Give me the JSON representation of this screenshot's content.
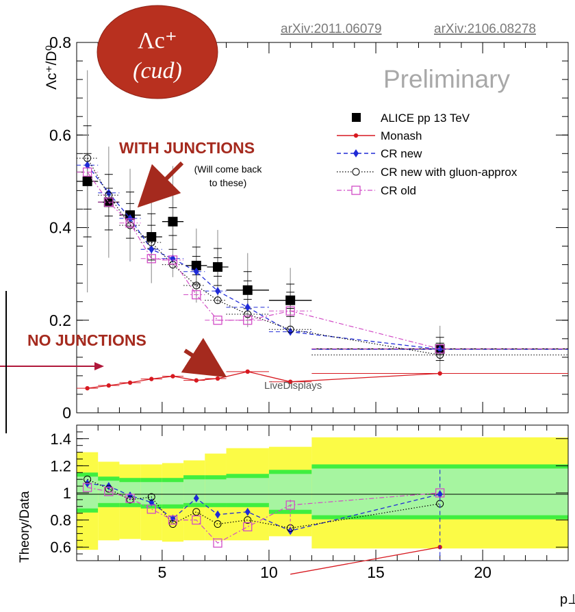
{
  "references": [
    "arXiv:2011.06079",
    "arXiv:2106.08278"
  ],
  "badge": {
    "line1": "Λc⁺",
    "line2": "(cud)"
  },
  "annotations": {
    "with_junctions": "WITH JUNCTIONS",
    "with_junctions_note_1": "(Will come back",
    "with_junctions_note_2": "to these)",
    "no_junctions": "NO JUNCTIONS",
    "watermark": "LiveDisplays",
    "preliminary": "Preliminary"
  },
  "colors": {
    "data": "#000000",
    "monash": "#d71920",
    "cr_new": "#1f2ad6",
    "cr_gluon": "#000000",
    "cr_old": "#d14bc6",
    "arrow": "#a52a1e",
    "badge": "#b8301f",
    "band_outer": "#fbfb46",
    "band_inner": "#40ee40"
  },
  "chart_data": [
    {
      "type": "scatter",
      "panel": "main",
      "ylabel": "Λc⁺/D⁰",
      "xlabel": "p⊥",
      "ylim": [
        0,
        0.8
      ],
      "xlim": [
        1,
        24
      ],
      "yticks": [
        0,
        0.2,
        0.4,
        0.6,
        0.8
      ],
      "ytick_labels": [
        "0",
        "0.2",
        "0.4",
        "0.6",
        "0.8"
      ],
      "legend_position": "top-right",
      "series": [
        {
          "name": "ALICE pp 13 TeV",
          "style": "data",
          "x": [
            1.5,
            2.5,
            3.5,
            4.5,
            5.5,
            6.6,
            7.6,
            9.0,
            11.0,
            18.0
          ],
          "y": [
            0.5,
            0.455,
            0.427,
            0.38,
            0.413,
            0.318,
            0.315,
            0.265,
            0.243,
            0.138
          ],
          "xerr": [
            0.5,
            0.5,
            0.5,
            0.5,
            0.5,
            0.5,
            0.5,
            1.0,
            1.0,
            6.0
          ],
          "yerr": [
            0.12,
            0.06,
            0.05,
            0.05,
            0.06,
            0.04,
            0.04,
            0.04,
            0.035,
            0.025
          ]
        },
        {
          "name": "Monash",
          "style": "monash",
          "x": [
            1.5,
            2.5,
            3.5,
            4.5,
            5.5,
            6.6,
            7.6,
            9.0,
            11.0,
            18.0
          ],
          "y": [
            0.053,
            0.059,
            0.065,
            0.073,
            0.079,
            0.07,
            0.074,
            0.089,
            0.067,
            0.085
          ]
        },
        {
          "name": "CR new",
          "style": "cr_new",
          "x": [
            1.5,
            2.5,
            3.5,
            4.5,
            5.5,
            6.6,
            7.6,
            9.0,
            11.0,
            18.0
          ],
          "y": [
            0.535,
            0.475,
            0.42,
            0.353,
            0.333,
            0.305,
            0.263,
            0.228,
            0.175,
            0.137
          ]
        },
        {
          "name": "CR new with gluon-approx",
          "style": "cr_gluon",
          "x": [
            1.5,
            2.5,
            3.5,
            4.5,
            5.5,
            6.6,
            7.6,
            9.0,
            11.0,
            18.0
          ],
          "y": [
            0.55,
            0.47,
            0.405,
            0.368,
            0.32,
            0.275,
            0.243,
            0.213,
            0.18,
            0.125
          ]
        },
        {
          "name": "CR old",
          "style": "cr_old",
          "x": [
            1.5,
            2.5,
            3.5,
            4.5,
            5.5,
            6.6,
            7.6,
            9.0,
            11.0,
            18.0
          ],
          "y": [
            0.52,
            0.455,
            0.41,
            0.333,
            0.33,
            0.255,
            0.2,
            0.2,
            0.22,
            0.138
          ]
        }
      ]
    },
    {
      "type": "scatter",
      "panel": "ratio",
      "ylabel": "Theory/Data",
      "xlabel": "p⊥",
      "ylim": [
        0.5,
        1.5
      ],
      "xlim": [
        1,
        24
      ],
      "yticks": [
        0.6,
        0.8,
        1.0,
        1.2,
        1.4
      ],
      "ytick_labels": [
        "0.6",
        "0.8",
        "1",
        "1.2",
        "1.4"
      ],
      "xticks": [
        5,
        10,
        15,
        20
      ],
      "xtick_labels": [
        "5",
        "10",
        "15",
        "20"
      ],
      "bands": {
        "edges": [
          1,
          2,
          3,
          4,
          5,
          6,
          7,
          8,
          10,
          12,
          24
        ],
        "outer_lo": [
          0.58,
          0.65,
          0.66,
          0.65,
          0.64,
          0.65,
          0.65,
          0.65,
          0.68,
          0.59
        ],
        "outer_hi": [
          1.3,
          1.23,
          1.21,
          1.21,
          1.22,
          1.24,
          1.29,
          1.33,
          1.34,
          1.41
        ],
        "inner_lo": [
          0.87,
          0.91,
          0.91,
          0.9,
          0.9,
          0.91,
          0.91,
          0.91,
          0.86,
          0.82
        ],
        "inner_hi": [
          1.14,
          1.11,
          1.1,
          1.1,
          1.1,
          1.12,
          1.12,
          1.13,
          1.16,
          1.2
        ]
      },
      "series": [
        {
          "name": "Monash",
          "style": "monash",
          "x": [
            11.0,
            18.0
          ],
          "y": [
            0.4,
            0.6
          ]
        },
        {
          "name": "CR new",
          "style": "cr_new",
          "x": [
            1.5,
            2.5,
            3.5,
            4.5,
            5.5,
            6.6,
            7.6,
            9.0,
            11.0,
            18.0
          ],
          "y": [
            1.07,
            1.05,
            0.98,
            0.93,
            0.81,
            0.96,
            0.84,
            0.86,
            0.72,
            0.99
          ]
        },
        {
          "name": "CR new with gluon-approx",
          "style": "cr_gluon",
          "x": [
            1.5,
            2.5,
            3.5,
            4.5,
            5.5,
            6.6,
            7.6,
            9.0,
            11.0,
            18.0
          ],
          "y": [
            1.1,
            1.03,
            0.95,
            0.97,
            0.77,
            0.86,
            0.77,
            0.8,
            0.74,
            0.92
          ]
        },
        {
          "name": "CR old",
          "style": "cr_old",
          "x": [
            1.5,
            2.5,
            3.5,
            4.5,
            5.5,
            6.6,
            7.6,
            9.0,
            11.0,
            18.0
          ],
          "y": [
            1.04,
            1.01,
            0.96,
            0.88,
            0.8,
            0.8,
            0.63,
            0.75,
            0.91,
            1.0
          ]
        }
      ]
    }
  ]
}
